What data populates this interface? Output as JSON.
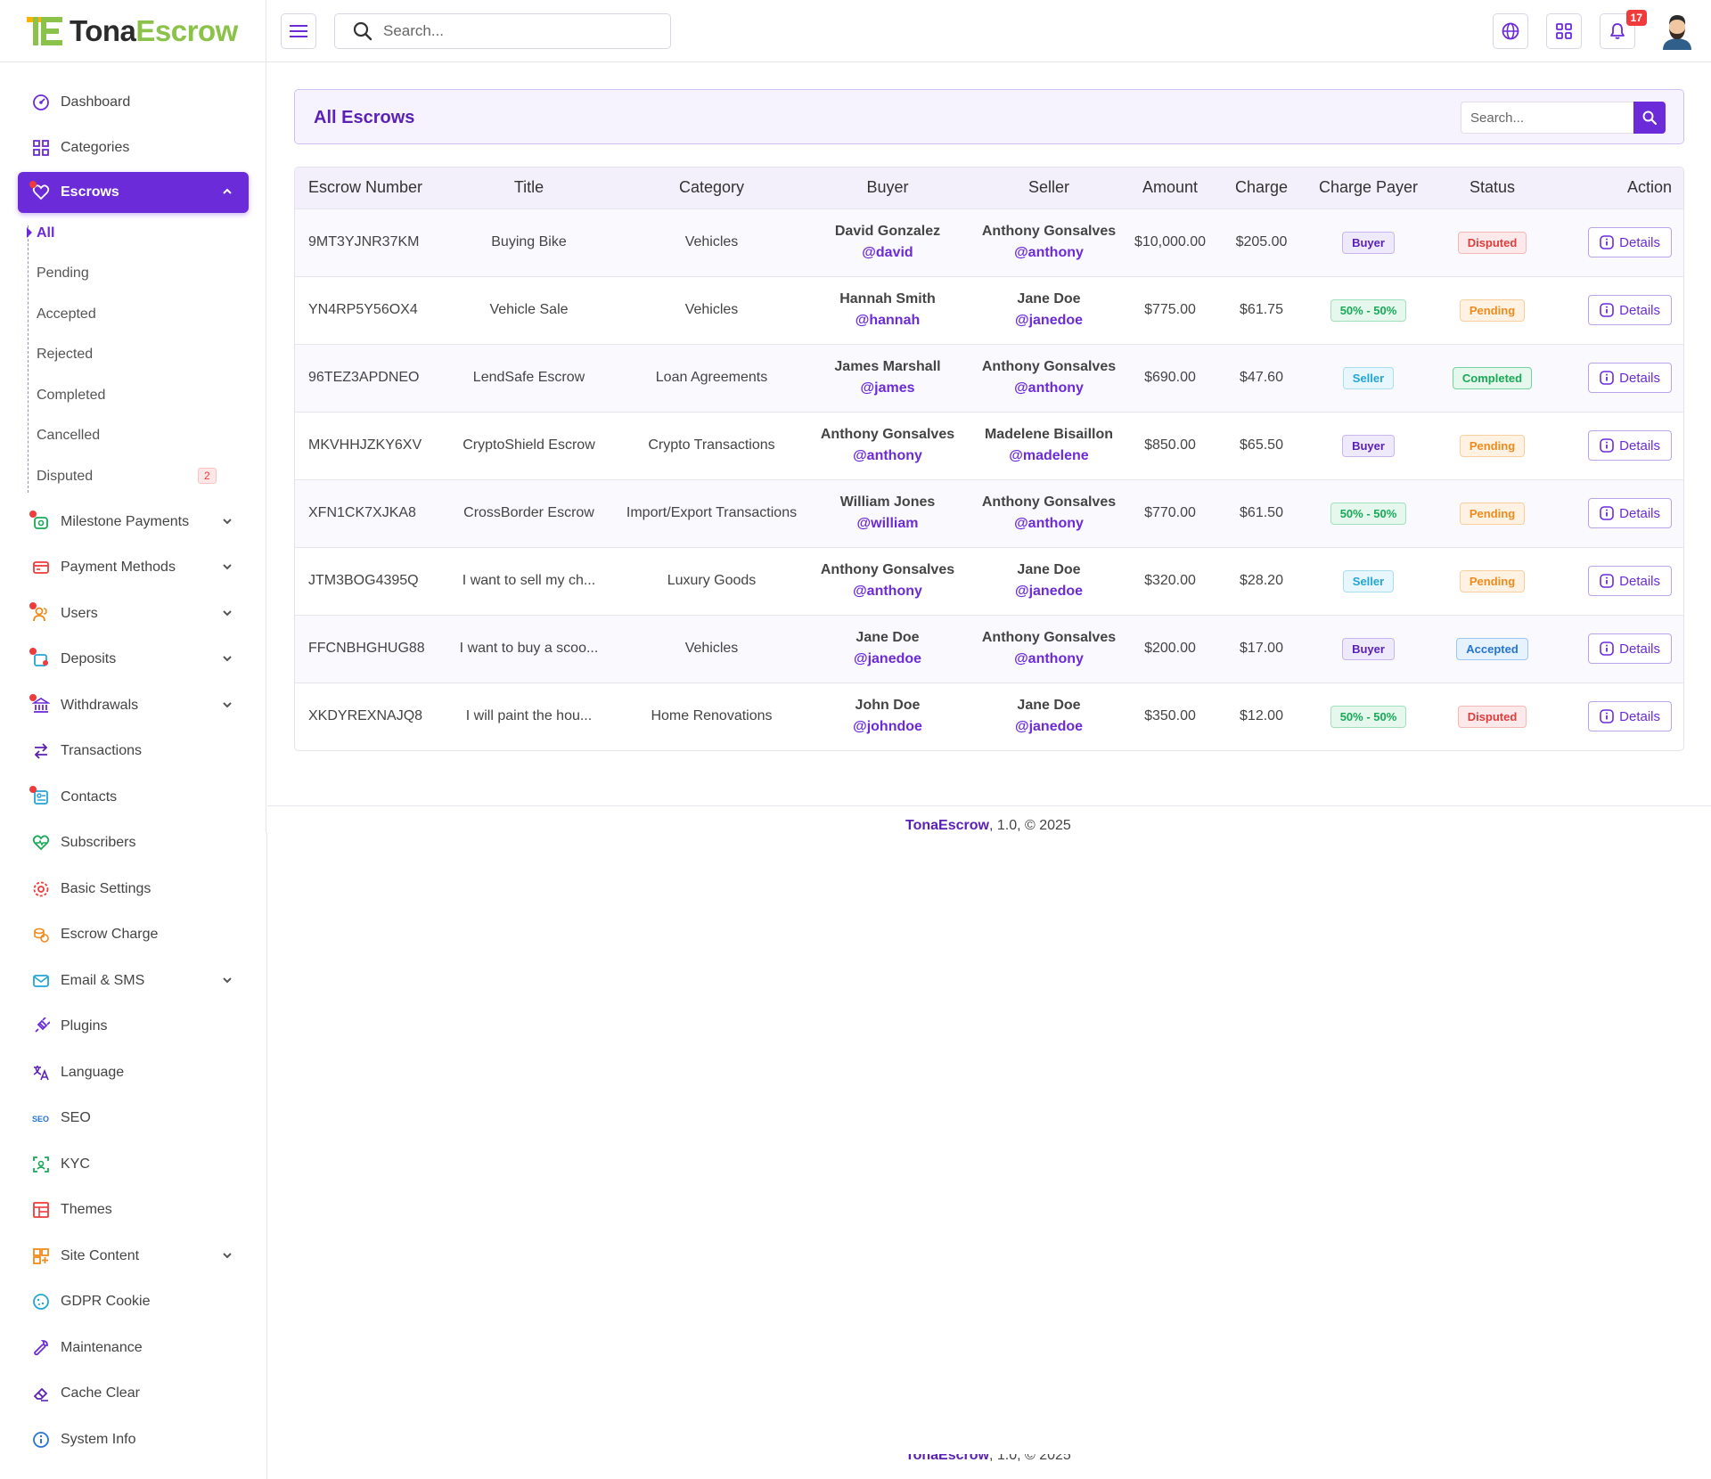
{
  "brand": {
    "name_part1": "Tona",
    "name_part2": "Escrow"
  },
  "header": {
    "search_placeholder": "Search...",
    "notification_count": "17"
  },
  "sidebar": {
    "items": [
      {
        "label": "Dashboard",
        "icon": "dashboard-icon"
      },
      {
        "label": "Categories",
        "icon": "grid-icon"
      },
      {
        "label": "Escrows",
        "icon": "escrow-icon"
      },
      {
        "label": "Milestone Payments",
        "icon": "milestone-icon"
      },
      {
        "label": "Payment Methods",
        "icon": "card-icon"
      },
      {
        "label": "Users",
        "icon": "users-icon"
      },
      {
        "label": "Deposits",
        "icon": "deposit-icon"
      },
      {
        "label": "Withdrawals",
        "icon": "bank-icon"
      },
      {
        "label": "Transactions",
        "icon": "transfer-icon"
      },
      {
        "label": "Contacts",
        "icon": "contacts-icon"
      },
      {
        "label": "Subscribers",
        "icon": "heart-pulse-icon"
      },
      {
        "label": "Basic Settings",
        "icon": "gear-icon"
      },
      {
        "label": "Escrow Charge",
        "icon": "coins-icon"
      },
      {
        "label": "Email & SMS",
        "icon": "mail-icon"
      },
      {
        "label": "Plugins",
        "icon": "plug-icon"
      },
      {
        "label": "Language",
        "icon": "translate-icon"
      },
      {
        "label": "SEO",
        "icon": "seo-icon"
      },
      {
        "label": "KYC",
        "icon": "face-scan-icon"
      },
      {
        "label": "Themes",
        "icon": "layout-icon"
      },
      {
        "label": "Site Content",
        "icon": "content-icon"
      },
      {
        "label": "GDPR Cookie",
        "icon": "cookie-icon"
      },
      {
        "label": "Maintenance",
        "icon": "wrench-icon"
      },
      {
        "label": "Cache Clear",
        "icon": "eraser-icon"
      },
      {
        "label": "System Info",
        "icon": "info-icon"
      }
    ],
    "escrow_sub": [
      "All",
      "Pending",
      "Accepted",
      "Rejected",
      "Completed",
      "Cancelled",
      "Disputed"
    ],
    "disputed_badge": "2"
  },
  "page": {
    "title": "All Escrows",
    "search_placeholder": "Search...",
    "columns": [
      "Escrow Number",
      "Title",
      "Category",
      "Buyer",
      "Seller",
      "Amount",
      "Charge",
      "Charge Payer",
      "Status",
      "Action"
    ],
    "details_label": "Details",
    "rows": [
      {
        "number": "9MT3YJNR37KM",
        "title": "Buying Bike",
        "category": "Vehicles",
        "buyer": "David Gonzalez",
        "buyer_handle": "@david",
        "seller": "Anthony Gonsalves",
        "seller_handle": "@anthony",
        "amount": "$10,000.00",
        "charge": "$205.00",
        "payer": "Buyer",
        "status": "Disputed"
      },
      {
        "number": "YN4RP5Y56OX4",
        "title": "Vehicle Sale",
        "category": "Vehicles",
        "buyer": "Hannah Smith",
        "buyer_handle": "@hannah",
        "seller": "Jane Doe",
        "seller_handle": "@janedoe",
        "amount": "$775.00",
        "charge": "$61.75",
        "payer": "50% - 50%",
        "status": "Pending"
      },
      {
        "number": "96TEZ3APDNEO",
        "title": "LendSafe Escrow",
        "category": "Loan Agreements",
        "buyer": "James Marshall",
        "buyer_handle": "@james",
        "seller": "Anthony Gonsalves",
        "seller_handle": "@anthony",
        "amount": "$690.00",
        "charge": "$47.60",
        "payer": "Seller",
        "status": "Completed"
      },
      {
        "number": "MKVHHJZKY6XV",
        "title": "CryptoShield Escrow",
        "category": "Crypto Transactions",
        "buyer": "Anthony Gonsalves",
        "buyer_handle": "@anthony",
        "seller": "Madelene Bisaillon",
        "seller_handle": "@madelene",
        "amount": "$850.00",
        "charge": "$65.50",
        "payer": "Buyer",
        "status": "Pending"
      },
      {
        "number": "XFN1CK7XJKA8",
        "title": "CrossBorder Escrow",
        "category": "Import/Export Transactions",
        "buyer": "William Jones",
        "buyer_handle": "@william",
        "seller": "Anthony Gonsalves",
        "seller_handle": "@anthony",
        "amount": "$770.00",
        "charge": "$61.50",
        "payer": "50% - 50%",
        "status": "Pending"
      },
      {
        "number": "JTM3BOG4395Q",
        "title": "I want to sell my ch...",
        "category": "Luxury Goods",
        "buyer": "Anthony Gonsalves",
        "buyer_handle": "@anthony",
        "seller": "Jane Doe",
        "seller_handle": "@janedoe",
        "amount": "$320.00",
        "charge": "$28.20",
        "payer": "Seller",
        "status": "Pending"
      },
      {
        "number": "FFCNBHGHUG88",
        "title": "I want to buy a scoo...",
        "category": "Vehicles",
        "buyer": "Jane Doe",
        "buyer_handle": "@janedoe",
        "seller": "Anthony Gonsalves",
        "seller_handle": "@anthony",
        "amount": "$200.00",
        "charge": "$17.00",
        "payer": "Buyer",
        "status": "Accepted"
      },
      {
        "number": "XKDYREXNAJQ8",
        "title": "I will paint the hou...",
        "category": "Home Renovations",
        "buyer": "John Doe",
        "buyer_handle": "@johndoe",
        "seller": "Jane Doe",
        "seller_handle": "@janedoe",
        "amount": "$350.00",
        "charge": "$12.00",
        "payer": "50% - 50%",
        "status": "Disputed"
      }
    ]
  },
  "footer": {
    "brand": "TonaEscrow",
    "text": ", 1.0, © 2025"
  },
  "colors": {
    "accent": "#6c2bd9",
    "brand_green": "#8bc34a"
  }
}
